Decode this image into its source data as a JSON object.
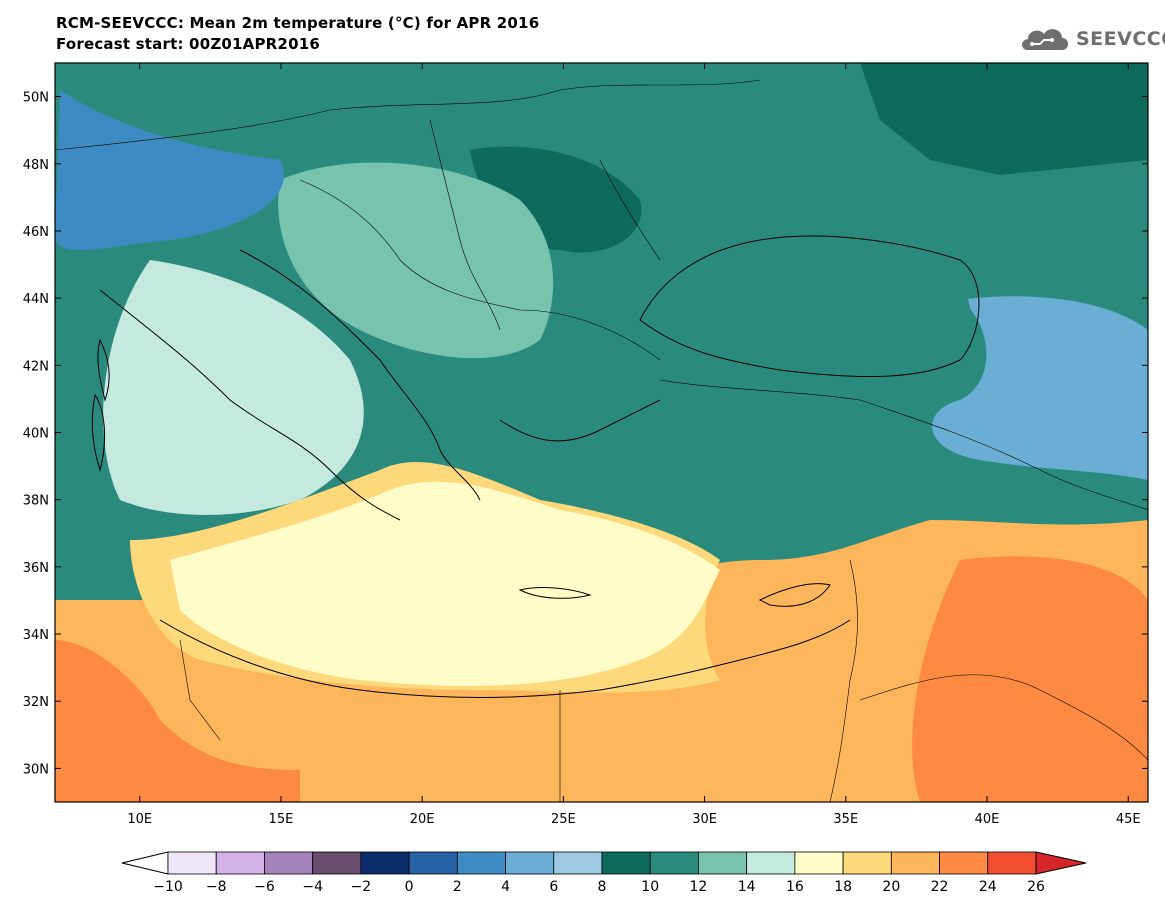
{
  "header": {
    "title_line1": "RCM-SEEVCCC: Mean 2m temperature (°C) for APR 2016",
    "title_line2": "Forecast start: 00Z01APR2016"
  },
  "logo": {
    "text": "SEEVCCC",
    "icon": "cloud-icon"
  },
  "map": {
    "lon_range": [
      7,
      45.7
    ],
    "lat_range": [
      29,
      51
    ],
    "lon_ticks": [
      {
        "value": 10,
        "label": "10E"
      },
      {
        "value": 15,
        "label": "15E"
      },
      {
        "value": 20,
        "label": "20E"
      },
      {
        "value": 25,
        "label": "25E"
      },
      {
        "value": 30,
        "label": "30E"
      },
      {
        "value": 35,
        "label": "35E"
      },
      {
        "value": 40,
        "label": "40E"
      },
      {
        "value": 45,
        "label": "45E"
      }
    ],
    "lat_ticks": [
      {
        "value": 30,
        "label": "30N"
      },
      {
        "value": 32,
        "label": "32N"
      },
      {
        "value": 34,
        "label": "34N"
      },
      {
        "value": 36,
        "label": "36N"
      },
      {
        "value": 38,
        "label": "38N"
      },
      {
        "value": 40,
        "label": "40N"
      },
      {
        "value": 42,
        "label": "42N"
      },
      {
        "value": 44,
        "label": "44N"
      },
      {
        "value": 46,
        "label": "46N"
      },
      {
        "value": 48,
        "label": "48N"
      },
      {
        "value": 50,
        "label": "50N"
      }
    ],
    "background_color": "#2a8b7d"
  },
  "colorbar": {
    "labels": [
      "−10",
      "−8",
      "−6",
      "−4",
      "−2",
      "0",
      "2",
      "4",
      "6",
      "8",
      "10",
      "12",
      "14",
      "16",
      "18",
      "20",
      "22",
      "24",
      "26"
    ],
    "under_color": "#ffffff",
    "over_color": "#d7262a",
    "colors": [
      "#efe6f7",
      "#d5b2e6",
      "#a682bb",
      "#6a4c6f",
      "#0c2d6b",
      "#2563a6",
      "#3e8bc4",
      "#6aaed6",
      "#9ecae1",
      "#0e6b5c",
      "#2a8b7d",
      "#78c3ae",
      "#c5e8df",
      "#fefcc7",
      "#fed97b",
      "#fdb65c",
      "#fc8a42",
      "#f04e2e"
    ]
  },
  "regions": [
    {
      "name": "background-moderate",
      "color": "#2a8b7d"
    },
    {
      "name": "warm-south",
      "color": "#fdb65c"
    },
    {
      "name": "hot-southeast",
      "color": "#fc8a42"
    },
    {
      "name": "mediterranean-sea",
      "color": "#fefcc7"
    },
    {
      "name": "coastal-band",
      "color": "#fed97b"
    },
    {
      "name": "italy-mild",
      "color": "#c5e8df"
    },
    {
      "name": "pannonian-mild",
      "color": "#78c3ae"
    },
    {
      "name": "alps-cold",
      "color": "#3e8bc4"
    },
    {
      "name": "caucasus-cold",
      "color": "#6aaed6"
    },
    {
      "name": "ukraine-cool",
      "color": "#0e6b5c"
    },
    {
      "name": "black-sea",
      "color": "#2a8b7d"
    },
    {
      "name": "carpathians-cool",
      "color": "#0e6b5c"
    }
  ]
}
